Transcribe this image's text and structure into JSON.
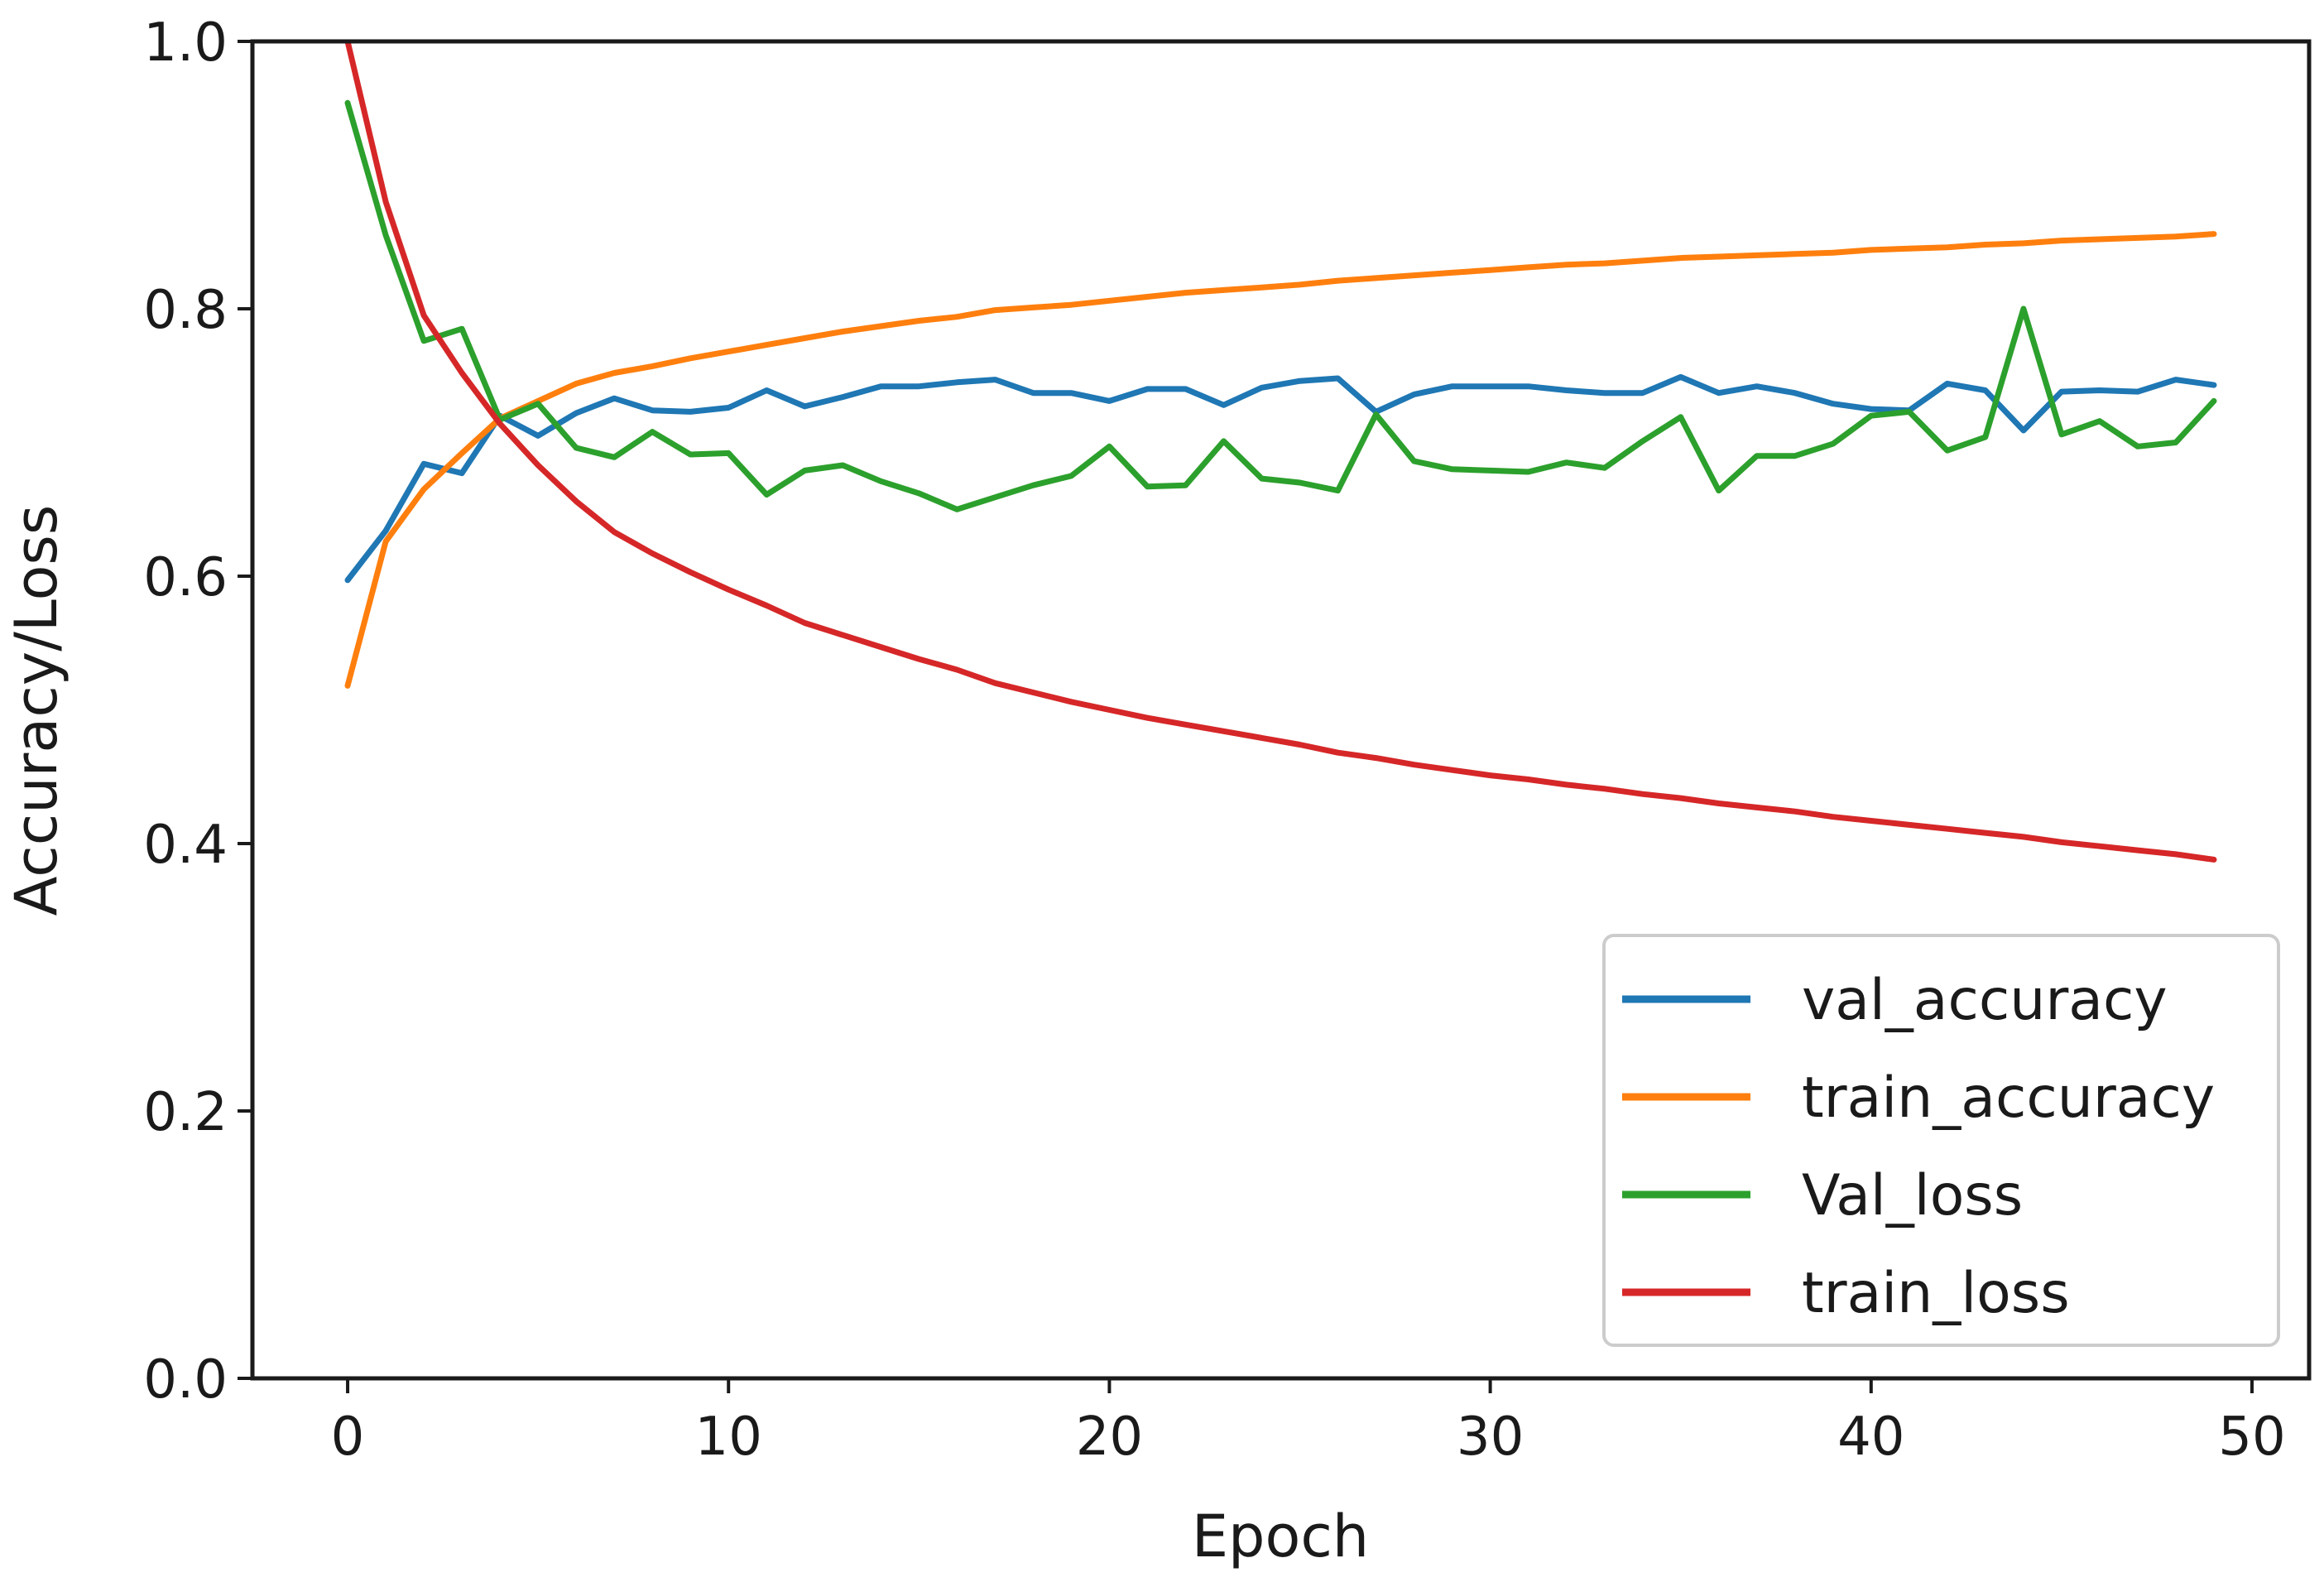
{
  "chart_data": {
    "type": "line",
    "title": "",
    "xlabel": "Epoch",
    "ylabel": "Accuracy/Loss",
    "xlim": [
      -2.5,
      51.5
    ],
    "ylim": [
      0.0,
      1.0
    ],
    "xticks": [
      0,
      10,
      20,
      30,
      40,
      50
    ],
    "xtick_labels": [
      "0",
      "10",
      "20",
      "30",
      "40",
      "50"
    ],
    "yticks": [
      0.0,
      0.2,
      0.4,
      0.6,
      0.8,
      1.0
    ],
    "ytick_labels": [
      "0.0",
      "0.2",
      "0.4",
      "0.6",
      "0.8",
      "1.0"
    ],
    "grid": false,
    "legend_position": "lower-right",
    "x": [
      0,
      1,
      2,
      3,
      4,
      5,
      6,
      7,
      8,
      9,
      10,
      11,
      12,
      13,
      14,
      15,
      16,
      17,
      18,
      19,
      20,
      21,
      22,
      23,
      24,
      25,
      26,
      27,
      28,
      29,
      30,
      31,
      32,
      33,
      34,
      35,
      36,
      37,
      38,
      39,
      40,
      41,
      42,
      43,
      44,
      45,
      46,
      47,
      48,
      49
    ],
    "series": [
      {
        "name": "val_accuracy",
        "color": "#1f77b4",
        "values": [
          0.597,
          0.634,
          0.684,
          0.677,
          0.72,
          0.705,
          0.722,
          0.733,
          0.724,
          0.723,
          0.726,
          0.739,
          0.727,
          0.734,
          0.742,
          0.742,
          0.745,
          0.747,
          0.737,
          0.737,
          0.731,
          0.74,
          0.74,
          0.728,
          0.741,
          0.746,
          0.748,
          0.723,
          0.736,
          0.742,
          0.742,
          0.742,
          0.739,
          0.737,
          0.737,
          0.749,
          0.737,
          0.742,
          0.737,
          0.729,
          0.725,
          0.724,
          0.744,
          0.739,
          0.709,
          0.738,
          0.739,
          0.738,
          0.747,
          0.743
        ]
      },
      {
        "name": "train_accuracy",
        "color": "#ff7f0e",
        "values": [
          0.518,
          0.626,
          0.665,
          0.692,
          0.718,
          0.731,
          0.744,
          0.752,
          0.757,
          0.763,
          0.768,
          0.773,
          0.778,
          0.783,
          0.787,
          0.791,
          0.794,
          0.799,
          0.801,
          0.803,
          0.806,
          0.809,
          0.812,
          0.814,
          0.816,
          0.818,
          0.821,
          0.823,
          0.825,
          0.827,
          0.829,
          0.831,
          0.833,
          0.834,
          0.836,
          0.838,
          0.839,
          0.84,
          0.841,
          0.842,
          0.844,
          0.845,
          0.846,
          0.848,
          0.849,
          0.851,
          0.852,
          0.853,
          0.854,
          0.856
        ]
      },
      {
        "name": "Val_loss",
        "color": "#2ca02c",
        "values": [
          0.954,
          0.855,
          0.776,
          0.785,
          0.717,
          0.729,
          0.696,
          0.689,
          0.708,
          0.691,
          0.692,
          0.661,
          0.679,
          0.683,
          0.671,
          0.662,
          0.65,
          0.659,
          0.668,
          0.675,
          0.697,
          0.667,
          0.668,
          0.701,
          0.673,
          0.67,
          0.664,
          0.721,
          0.686,
          0.68,
          0.679,
          0.678,
          0.685,
          0.681,
          0.701,
          0.719,
          0.664,
          0.69,
          0.69,
          0.699,
          0.72,
          0.723,
          0.694,
          0.704,
          0.8,
          0.706,
          0.716,
          0.697,
          0.7,
          0.731
        ]
      },
      {
        "name": "train_loss",
        "color": "#d62728",
        "values": [
          1.0,
          0.88,
          0.795,
          0.752,
          0.714,
          0.683,
          0.656,
          0.633,
          0.617,
          0.603,
          0.59,
          0.578,
          0.565,
          0.556,
          0.547,
          0.538,
          0.53,
          0.52,
          0.513,
          0.506,
          0.5,
          0.494,
          0.489,
          0.484,
          0.479,
          0.474,
          0.468,
          0.464,
          0.459,
          0.455,
          0.451,
          0.448,
          0.444,
          0.441,
          0.437,
          0.434,
          0.43,
          0.427,
          0.424,
          0.42,
          0.417,
          0.414,
          0.411,
          0.408,
          0.405,
          0.401,
          0.398,
          0.395,
          0.392,
          0.388
        ]
      }
    ]
  }
}
